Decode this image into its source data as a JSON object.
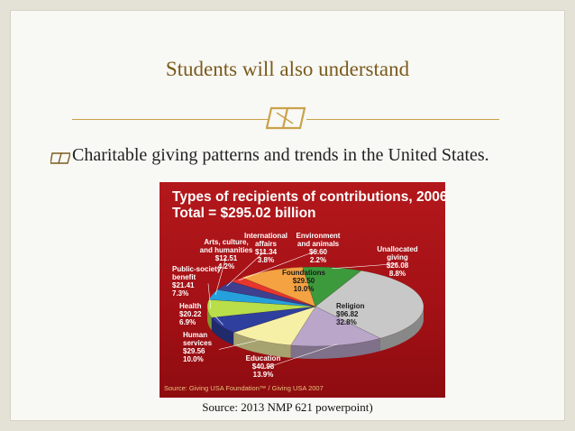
{
  "slide": {
    "title": "Students will also understand",
    "bullet": "Charitable giving patterns and trends in the United States.",
    "source": "Source: 2013 NMP 621 powerpoint)"
  },
  "colors": {
    "title": "#7a5a1c",
    "rule": "#c9a24a",
    "chart_background": "#a41116"
  },
  "chart_data": {
    "type": "pie",
    "title": "Types of recipients of contributions, 2006",
    "subtitle": "Total = $295.02 billion",
    "source_note": "Source: Giving USA Foundation™ / Giving USA 2007",
    "slices": [
      {
        "label_lines": [
          "Religion"
        ],
        "value_text": "$96.82",
        "percent_text": "32.8%",
        "value": 96.82,
        "percent": 32.8,
        "color": "#c8c8c8"
      },
      {
        "label_lines": [
          "Education"
        ],
        "value_text": "$40.98",
        "percent_text": "13.9%",
        "value": 40.98,
        "percent": 13.9,
        "color": "#b9a6c9"
      },
      {
        "label_lines": [
          "Human",
          "services"
        ],
        "value_text": "$29.56",
        "percent_text": "10.0%",
        "value": 29.56,
        "percent": 10.0,
        "color": "#f6f0a6"
      },
      {
        "label_lines": [
          "Health"
        ],
        "value_text": "$20.22",
        "percent_text": "6.9%",
        "value": 20.22,
        "percent": 6.9,
        "color": "#2f3f9e"
      },
      {
        "label_lines": [
          "Public-society",
          "benefit"
        ],
        "value_text": "$21.41",
        "percent_text": "7.3%",
        "value": 21.41,
        "percent": 7.3,
        "color": "#b9de4a"
      },
      {
        "label_lines": [
          "Arts, culture,",
          "and humanities"
        ],
        "value_text": "$12.51",
        "percent_text": "4.2%",
        "value": 12.51,
        "percent": 4.2,
        "color": "#26a0dc"
      },
      {
        "label_lines": [
          "International",
          "affairs"
        ],
        "value_text": "$11.34",
        "percent_text": "3.8%",
        "value": 11.34,
        "percent": 3.8,
        "color": "#3f3f8f"
      },
      {
        "label_lines": [
          "Environment",
          "and animals"
        ],
        "value_text": "$6.60",
        "percent_text": "2.2%",
        "value": 6.6,
        "percent": 2.2,
        "color": "#e8362c"
      },
      {
        "label_lines": [
          "Foundations"
        ],
        "value_text": "$29.50",
        "percent_text": "10.0%",
        "value": 29.5,
        "percent": 10.0,
        "color": "#f5a243"
      },
      {
        "label_lines": [
          "Unallocated",
          "giving"
        ],
        "value_text": "$26.08",
        "percent_text": "8.8%",
        "value": 26.08,
        "percent": 8.8,
        "color": "#3c9a3c"
      }
    ]
  }
}
